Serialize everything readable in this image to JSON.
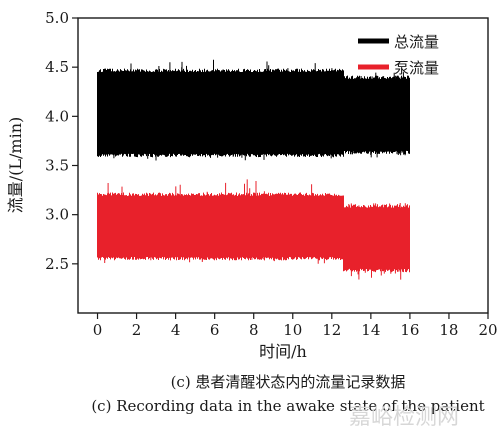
{
  "chart_data": {
    "type": "area",
    "title": "",
    "xlabel": "时间/h",
    "ylabel": "流量/(L/min)",
    "xlim": [
      -1,
      20
    ],
    "ylim": [
      2.0,
      5.0
    ],
    "xticks": [
      0,
      2,
      4,
      6,
      8,
      10,
      12,
      14,
      16,
      18,
      20
    ],
    "yticks": [
      2.5,
      3.0,
      3.5,
      4.0,
      4.5,
      5.0
    ],
    "xtick_labels": [
      "0",
      "2",
      "4",
      "6",
      "8",
      "10",
      "12",
      "14",
      "16",
      "18",
      "20"
    ],
    "ytick_labels": [
      "2.5",
      "3.0",
      "3.5",
      "4.0",
      "4.5",
      "5.0"
    ],
    "grid": false,
    "legend_position": "top-right",
    "series": [
      {
        "name": "总流量",
        "color": "#000000",
        "segments": [
          {
            "x_start": 0,
            "x_end": 12.6,
            "y_low": 3.62,
            "y_high": 4.45,
            "spike_low": 3.55,
            "spike_high": 4.58
          },
          {
            "x_start": 12.6,
            "x_end": 16.0,
            "y_low": 3.65,
            "y_high": 4.38,
            "spike_low": 3.58,
            "spike_high": 4.45
          }
        ]
      },
      {
        "name": "泵流量",
        "color": "#e8212b",
        "segments": [
          {
            "x_start": 0,
            "x_end": 12.6,
            "y_low": 2.57,
            "y_high": 3.19,
            "spike_low": 2.5,
            "spike_high": 3.36
          },
          {
            "x_start": 12.6,
            "x_end": 16.0,
            "y_low": 2.45,
            "y_high": 3.07,
            "spike_low": 2.33,
            "spike_high": 3.12
          }
        ]
      }
    ]
  },
  "caption": {
    "chinese": "(c) 患者清醒状态内的流量记录数据",
    "english": "(c) Recording data in the awake state of the patient"
  },
  "watermark": {
    "text": "嘉峪检测网"
  }
}
